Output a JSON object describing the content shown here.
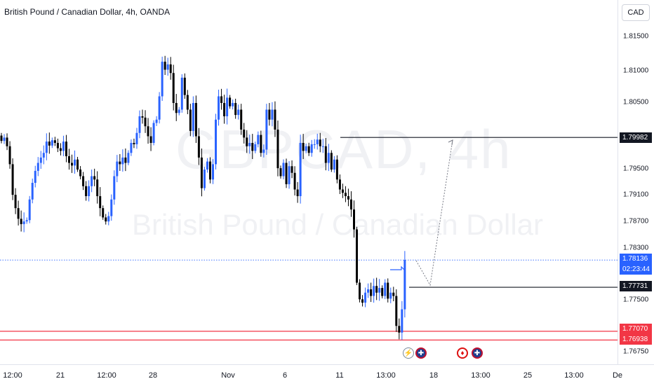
{
  "header": {
    "title": "British Pound / Canadian Dollar, 4h, OANDA"
  },
  "currency_button": {
    "label": "CAD"
  },
  "watermark": {
    "symbol": "GBPCAD, 4h",
    "name": "British Pound / Canadian Dollar"
  },
  "price_axis": {
    "ticks": [
      "1.81500",
      "1.81000",
      "1.80500",
      "1.79500",
      "1.79100",
      "1.78700",
      "1.78300",
      "1.77500",
      "1.76750"
    ]
  },
  "price_tags": {
    "resistance": "1.79982",
    "current_price": "1.78136",
    "countdown": "02:23:44",
    "level": "1.77731",
    "support_1": "1.77070",
    "support_2": "1.76938"
  },
  "time_axis": {
    "ticks": [
      "12:00",
      "21",
      "12:00",
      "28",
      "Nov",
      "6",
      "11",
      "13:00",
      "18",
      "13:00",
      "25",
      "13:00",
      "De"
    ]
  },
  "events": {
    "icon_1": "lightning-icon",
    "icon_2": "uk-flag-icon",
    "icon_3": "canada-flag-icon",
    "icon_4": "uk-flag-icon"
  },
  "colors": {
    "bull": "#2962ff",
    "bear": "#000000",
    "support": "#f23645",
    "level": "#131722",
    "current": "#2962ff"
  },
  "chart_data": {
    "type": "candlestick",
    "y_range": [
      1.7665,
      1.8185
    ],
    "closes": [
      1.7993,
      1.7998,
      1.7985,
      1.7958,
      1.7912,
      1.7892,
      1.7876,
      1.7868,
      1.7872,
      1.7874,
      1.7905,
      1.793,
      1.7948,
      1.796,
      1.7968,
      1.7975,
      1.7992,
      1.7986,
      1.7994,
      1.799,
      1.7982,
      1.7978,
      1.7992,
      1.797,
      1.796,
      1.7956,
      1.7965,
      1.795,
      1.794,
      1.7925,
      1.791,
      1.7925,
      1.794,
      1.7935,
      1.791,
      1.7892,
      1.7878,
      1.7872,
      1.788,
      1.7905,
      1.794,
      1.7962,
      1.7958,
      1.7968,
      1.796,
      1.7975,
      1.799,
      1.7988,
      1.8005,
      1.803,
      1.8028,
      1.8015,
      1.8,
      1.799,
      1.802,
      1.8025,
      1.806,
      1.8112,
      1.81,
      1.8108,
      1.8095,
      1.805,
      1.8035,
      1.804,
      1.8088,
      1.8062,
      1.804,
      1.8008,
      1.805,
      1.8,
      1.7968,
      1.7922,
      1.795,
      1.7962,
      1.7935,
      1.7958,
      1.8025,
      1.806,
      1.805,
      1.803,
      1.8058,
      1.8045,
      1.805,
      1.8032,
      1.804,
      1.801,
      1.7998,
      1.7985,
      1.799,
      1.7978,
      1.7988,
      1.8002,
      1.7975,
      1.798,
      1.804,
      1.8025,
      1.804,
      1.801,
      1.7952,
      1.794,
      1.796,
      1.7928,
      1.7955,
      1.7945,
      1.792,
      1.791,
      1.799,
      1.7978,
      1.7985,
      1.7975,
      1.7988,
      1.7988,
      1.7995,
      1.7985,
      1.7985,
      1.796,
      1.7975,
      1.795,
      1.7965,
      1.7935,
      1.792,
      1.7915,
      1.791,
      1.7905,
      1.789,
      1.786,
      1.778,
      1.7755,
      1.775,
      1.7765,
      1.777,
      1.776,
      1.7775,
      1.7765,
      1.7772,
      1.776,
      1.778,
      1.7756,
      1.7765,
      1.776,
      1.7715,
      1.7705,
      1.774,
      1.7814
    ]
  }
}
